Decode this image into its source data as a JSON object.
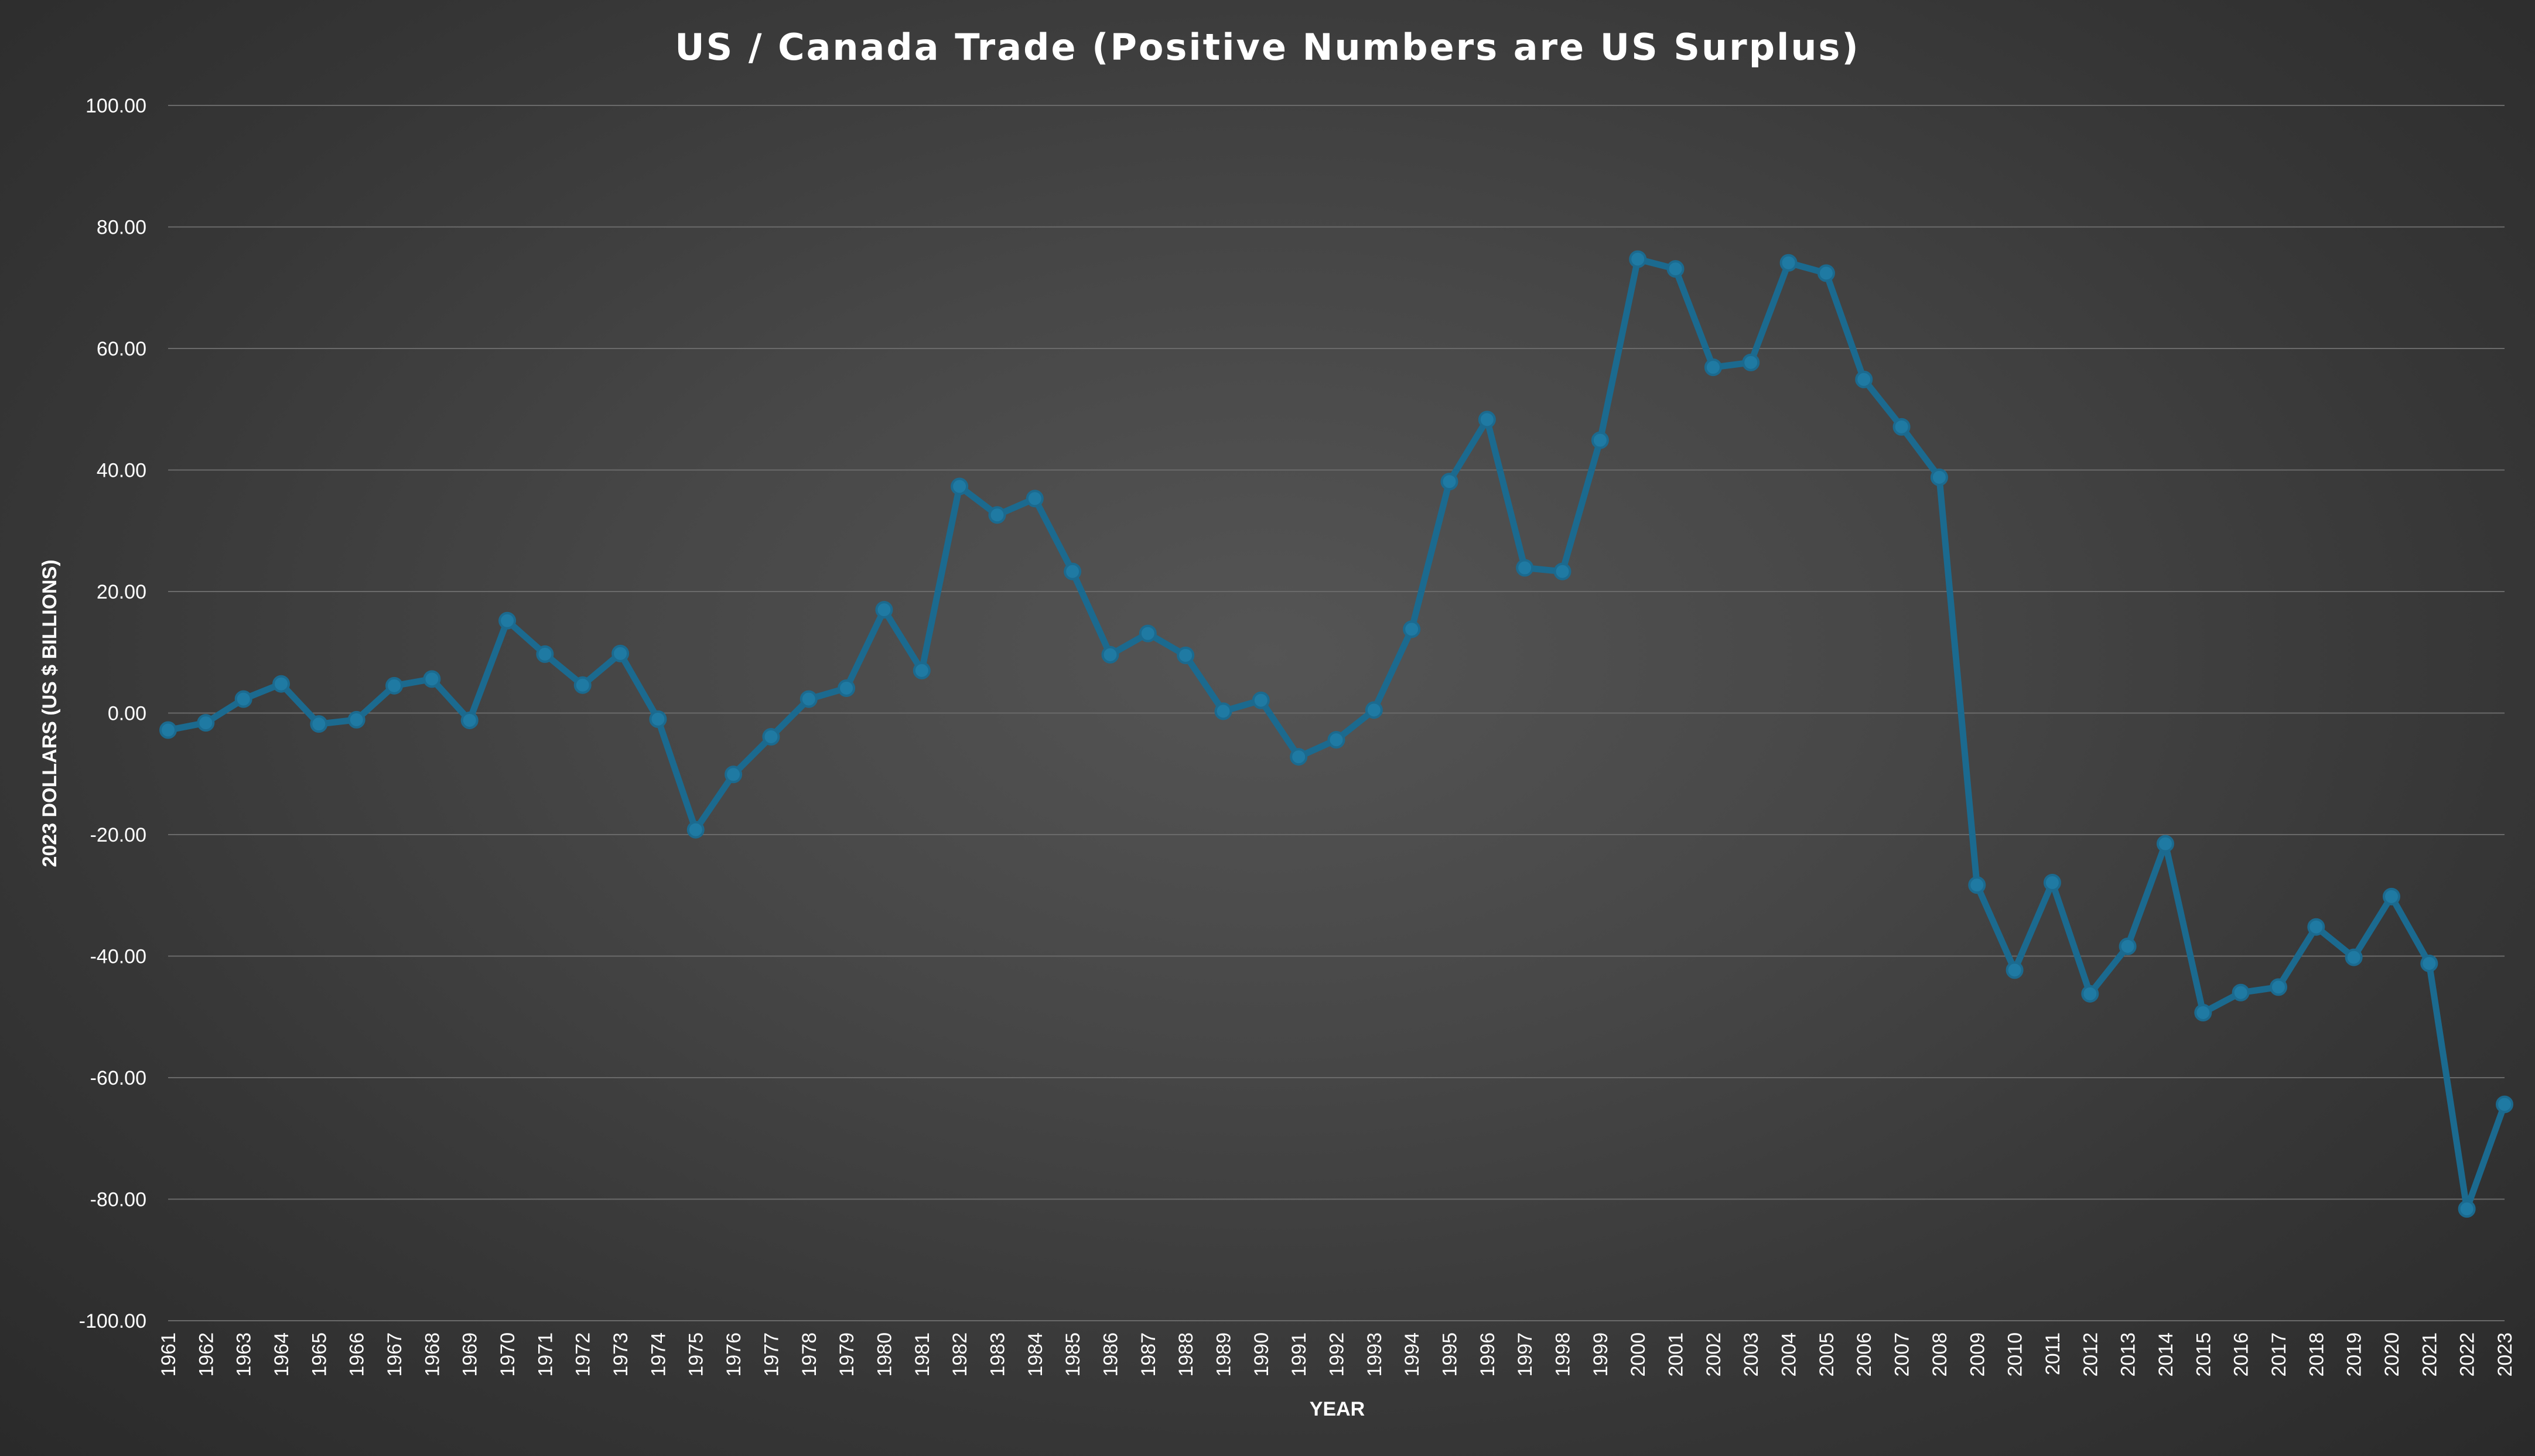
{
  "chart_data": {
    "type": "line",
    "title": "US / Canada Trade (Positive Numbers are US Surplus)",
    "xlabel": "YEAR",
    "ylabel": "2023 DOLLARS (US $ BILLIONS)",
    "ylim": [
      -100,
      100
    ],
    "yticks": [
      "100.00",
      "80.00",
      "60.00",
      "40.00",
      "20.00",
      "0.00",
      "-20.00",
      "-40.00",
      "-60.00",
      "-80.00",
      "-100.00"
    ],
    "grid": true,
    "legend": "none",
    "line_color": "#1b6a8f",
    "marker_color": "#1f7aa3",
    "categories": [
      "1961",
      "1962",
      "1963",
      "1964",
      "1965",
      "1966",
      "1967",
      "1968",
      "1969",
      "1970",
      "1971",
      "1972",
      "1973",
      "1974",
      "1975",
      "1976",
      "1977",
      "1978",
      "1979",
      "1980",
      "1981",
      "1982",
      "1983",
      "1984",
      "1985",
      "1986",
      "1987",
      "1988",
      "1989",
      "1990",
      "1991",
      "1992",
      "1993",
      "1994",
      "1995",
      "1996",
      "1997",
      "1998",
      "1999",
      "2000",
      "2001",
      "2002",
      "2003",
      "2004",
      "2005",
      "2006",
      "2007",
      "2008",
      "2009",
      "2010",
      "2011",
      "2012",
      "2013",
      "2014",
      "2015",
      "2016",
      "2017",
      "2018",
      "2019",
      "2020",
      "2021",
      "2022",
      "2023"
    ],
    "series": [
      {
        "values": [
          -2.8,
          -1.6,
          2.3,
          4.8,
          -1.8,
          -1.1,
          4.5,
          5.6,
          -1.2,
          15.2,
          9.7,
          4.6,
          9.8,
          -1.0,
          -19.2,
          -10.1,
          -3.9,
          2.3,
          4.1,
          17.0,
          7.0,
          37.3,
          32.6,
          35.3,
          23.3,
          9.6,
          13.1,
          9.5,
          0.3,
          2.1,
          -7.2,
          -4.4,
          0.5,
          13.8,
          38.1,
          48.3,
          23.9,
          23.3,
          44.9,
          74.7,
          73.1,
          56.9,
          57.7,
          74.1,
          72.4,
          54.9,
          47.1,
          38.8,
          -28.3,
          -42.3,
          -27.9,
          -46.2,
          -38.4,
          -21.5,
          -49.3,
          -46.0,
          -45.1,
          -35.2,
          -40.2,
          -30.2,
          -41.2,
          -81.6,
          -64.4
        ]
      }
    ]
  }
}
